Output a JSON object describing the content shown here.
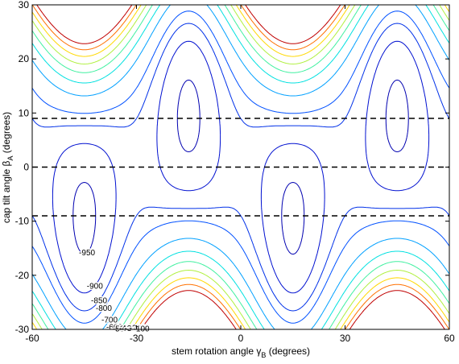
{
  "chart_data": {
    "type": "contour",
    "x_label": {
      "text": "stem rotation angle γ",
      "sub": "B",
      "rest": " (degrees)"
    },
    "y_label": {
      "text": "cap tilt angle β",
      "sub": "A",
      "rest": " (degrees)"
    },
    "levels": [
      -950,
      -900,
      -850,
      -800,
      -700,
      -600,
      -500,
      -400,
      -300,
      -200,
      -100
    ],
    "colors": [
      "#0000b0",
      "#0010d0",
      "#0030e8",
      "#0050ff",
      "#00a0ff",
      "#00e0e0",
      "#40f0a0",
      "#b0f040",
      "#ffd800",
      "#ff7000",
      "#c00000"
    ],
    "hlines": [
      9,
      0,
      -9
    ],
    "xlim": [
      -60,
      60
    ],
    "ylim": [
      -30,
      30
    ],
    "xticks": [
      -60,
      -30,
      0,
      30,
      60
    ],
    "yticks": [
      -30,
      -20,
      -10,
      0,
      10,
      20,
      30
    ]
  }
}
